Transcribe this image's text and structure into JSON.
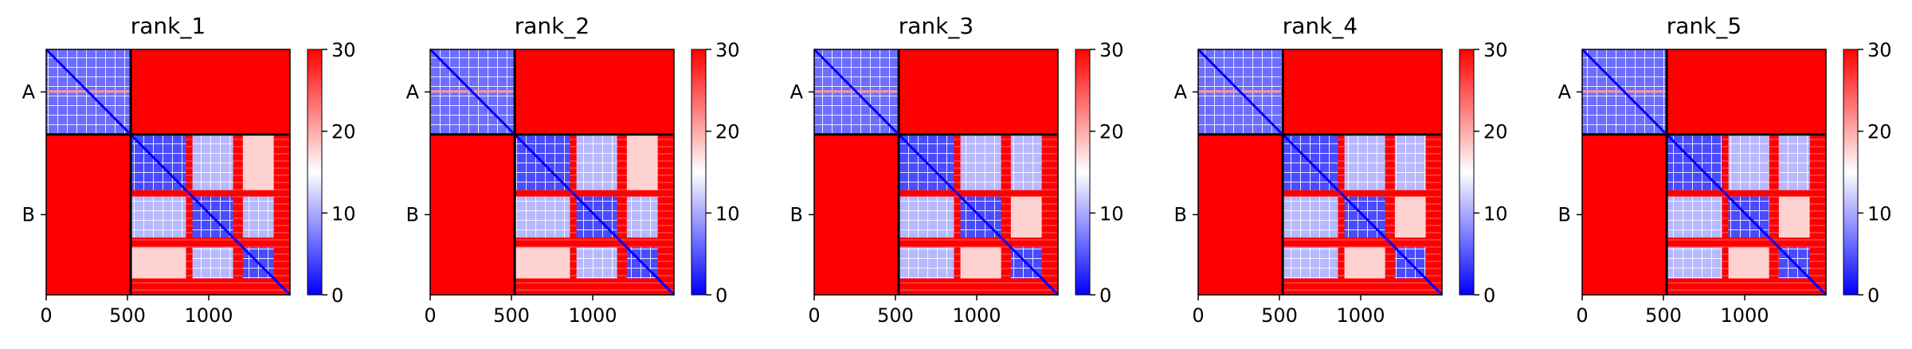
{
  "chart_data": {
    "type": "heatmap",
    "colormap": [
      "#0000ff",
      "#ffffff",
      "#ff0000"
    ],
    "clim": [
      0,
      30
    ],
    "colorbar_ticks": [
      0,
      10,
      20,
      30
    ],
    "x_ticks": [
      0,
      500,
      1000
    ],
    "xlim": [
      0,
      1500
    ],
    "chains": [
      {
        "label": "A",
        "start": 0,
        "end": 520
      },
      {
        "label": "B",
        "start": 520,
        "end": 1500
      }
    ],
    "panels": [
      {
        "title": "rank_1",
        "order": [
          "p1",
          "p2",
          "p3"
        ]
      },
      {
        "title": "rank_2",
        "order": [
          "p1",
          "p2",
          "p3"
        ]
      },
      {
        "title": "rank_3",
        "order": [
          "p2",
          "p1",
          "p3"
        ]
      },
      {
        "title": "rank_4",
        "order": [
          "p3",
          "p1",
          "p2"
        ]
      },
      {
        "title": "rank_5",
        "order": [
          "p3",
          "p1",
          "p2"
        ]
      }
    ],
    "domains": {
      "A": [
        0,
        520
      ],
      "p1": [
        520,
        860
      ],
      "p2": [
        900,
        1150
      ],
      "p3": [
        1210,
        1400
      ],
      "tail": [
        1400,
        1500
      ]
    }
  }
}
